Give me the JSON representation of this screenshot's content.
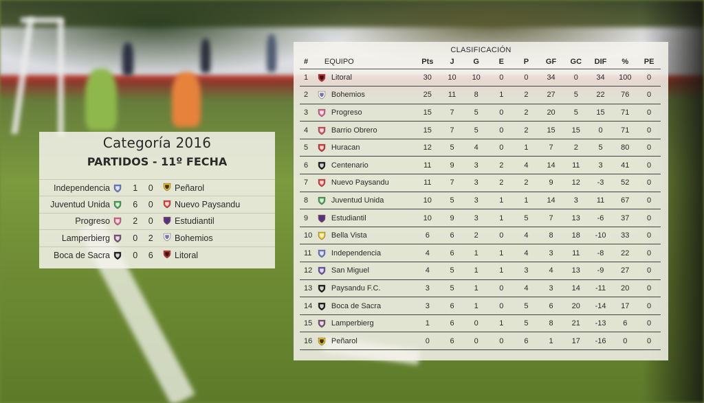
{
  "matches": {
    "title": "Categoría 2016",
    "round": "PARTIDOS - 11º FECHA",
    "games": [
      {
        "home": "Independencia",
        "home_icon": "independencia-crest-icon",
        "score": "1 0",
        "away": "Peñarol",
        "away_icon": "penarol-crest-icon"
      },
      {
        "home": "Juventud Unida",
        "home_icon": "juventud-unida-crest-icon",
        "score": "6 0",
        "away": "Nuevo Paysandu",
        "away_icon": "nuevo-paysandu-crest-icon"
      },
      {
        "home": "Progreso",
        "home_icon": "progreso-crest-icon",
        "score": "2 0",
        "away": "Estudiantil",
        "away_icon": "estudiantil-crest-icon"
      },
      {
        "home": "Lamperbierg",
        "home_icon": "lamperbierg-crest-icon",
        "score": "0 2",
        "away": "Bohemios",
        "away_icon": "bohemios-crest-icon"
      },
      {
        "home": "Boca de Sacra",
        "home_icon": "boca-de-sacra-crest-icon",
        "score": "0 6",
        "away": "Litoral",
        "away_icon": "litoral-crest-icon"
      }
    ]
  },
  "standings": {
    "title": "CLASIFICACIÓN",
    "headers": {
      "pos": "#",
      "team": "EQUIPO",
      "pts": "Pts",
      "j": "J",
      "g": "G",
      "e": "E",
      "p": "P",
      "gf": "GF",
      "gc": "GC",
      "dif": "DIF",
      "pct": "%",
      "pe": "PE"
    },
    "rows": [
      {
        "pos": "1",
        "team": "Litoral",
        "icon": "litoral-crest-icon",
        "pts": "30",
        "j": "10",
        "g": "10",
        "e": "0",
        "p": "0",
        "gf": "34",
        "gc": "0",
        "dif": "34",
        "pct": "100",
        "pe": "0"
      },
      {
        "pos": "2",
        "team": "Bohemios",
        "icon": "bohemios-crest-icon",
        "pts": "25",
        "j": "11",
        "g": "8",
        "e": "1",
        "p": "2",
        "gf": "27",
        "gc": "5",
        "dif": "22",
        "pct": "76",
        "pe": "0"
      },
      {
        "pos": "3",
        "team": "Progreso",
        "icon": "progreso-crest-icon",
        "pts": "15",
        "j": "7",
        "g": "5",
        "e": "0",
        "p": "2",
        "gf": "20",
        "gc": "5",
        "dif": "15",
        "pct": "71",
        "pe": "0"
      },
      {
        "pos": "4",
        "team": "Barrio Obrero",
        "icon": "barrio-obrero-crest-icon",
        "pts": "15",
        "j": "7",
        "g": "5",
        "e": "0",
        "p": "2",
        "gf": "15",
        "gc": "15",
        "dif": "0",
        "pct": "71",
        "pe": "0"
      },
      {
        "pos": "5",
        "team": "Huracan",
        "icon": "huracan-crest-icon",
        "pts": "12",
        "j": "5",
        "g": "4",
        "e": "0",
        "p": "1",
        "gf": "7",
        "gc": "2",
        "dif": "5",
        "pct": "80",
        "pe": "0"
      },
      {
        "pos": "6",
        "team": "Centenario",
        "icon": "centenario-crest-icon",
        "pts": "11",
        "j": "9",
        "g": "3",
        "e": "2",
        "p": "4",
        "gf": "14",
        "gc": "11",
        "dif": "3",
        "pct": "41",
        "pe": "0"
      },
      {
        "pos": "7",
        "team": "Nuevo Paysandu",
        "icon": "nuevo-paysandu-crest-icon",
        "pts": "11",
        "j": "7",
        "g": "3",
        "e": "2",
        "p": "2",
        "gf": "9",
        "gc": "12",
        "dif": "-3",
        "pct": "52",
        "pe": "0"
      },
      {
        "pos": "8",
        "team": "Juventud Unida",
        "icon": "juventud-unida-crest-icon",
        "pts": "10",
        "j": "5",
        "g": "3",
        "e": "1",
        "p": "1",
        "gf": "14",
        "gc": "3",
        "dif": "11",
        "pct": "67",
        "pe": "0"
      },
      {
        "pos": "9",
        "team": "Estudiantil",
        "icon": "estudiantil-crest-icon",
        "pts": "10",
        "j": "9",
        "g": "3",
        "e": "1",
        "p": "5",
        "gf": "7",
        "gc": "13",
        "dif": "-6",
        "pct": "37",
        "pe": "0"
      },
      {
        "pos": "10",
        "team": "Bella Vista",
        "icon": "bella-vista-crest-icon",
        "pts": "6",
        "j": "6",
        "g": "2",
        "e": "0",
        "p": "4",
        "gf": "8",
        "gc": "18",
        "dif": "-10",
        "pct": "33",
        "pe": "0"
      },
      {
        "pos": "11",
        "team": "Independencia",
        "icon": "independencia-crest-icon",
        "pts": "4",
        "j": "6",
        "g": "1",
        "e": "1",
        "p": "4",
        "gf": "3",
        "gc": "11",
        "dif": "-8",
        "pct": "22",
        "pe": "0"
      },
      {
        "pos": "12",
        "team": "San Miguel",
        "icon": "san-miguel-crest-icon",
        "pts": "4",
        "j": "5",
        "g": "1",
        "e": "1",
        "p": "3",
        "gf": "4",
        "gc": "13",
        "dif": "-9",
        "pct": "27",
        "pe": "0"
      },
      {
        "pos": "13",
        "team": "Paysandu F.C.",
        "icon": "paysandu-fc-crest-icon",
        "pts": "3",
        "j": "5",
        "g": "1",
        "e": "0",
        "p": "4",
        "gf": "3",
        "gc": "14",
        "dif": "-11",
        "pct": "20",
        "pe": "0"
      },
      {
        "pos": "14",
        "team": "Boca de Sacra",
        "icon": "boca-de-sacra-crest-icon",
        "pts": "3",
        "j": "6",
        "g": "1",
        "e": "0",
        "p": "5",
        "gf": "6",
        "gc": "20",
        "dif": "-14",
        "pct": "17",
        "pe": "0"
      },
      {
        "pos": "15",
        "team": "Lamperbierg",
        "icon": "lamperbierg-crest-icon",
        "pts": "1",
        "j": "6",
        "g": "0",
        "e": "1",
        "p": "5",
        "gf": "8",
        "gc": "21",
        "dif": "-13",
        "pct": "6",
        "pe": "0"
      },
      {
        "pos": "16",
        "team": "Peñarol",
        "icon": "penarol-crest-icon",
        "pts": "0",
        "j": "6",
        "g": "0",
        "e": "0",
        "p": "6",
        "gf": "1",
        "gc": "17",
        "dif": "-16",
        "pct": "0",
        "pe": "0"
      }
    ]
  },
  "crest_colors": {
    "litoral-crest-icon": [
      "#c62828",
      "#111111"
    ],
    "bohemios-crest-icon": [
      "#ffffff",
      "#5c4fa3"
    ],
    "progreso-crest-icon": [
      "#e35d8a",
      "#ffffff"
    ],
    "barrio-obrero-crest-icon": [
      "#d94455",
      "#ffffff"
    ],
    "huracan-crest-icon": [
      "#d62d2d",
      "#ffffff"
    ],
    "centenario-crest-icon": [
      "#111111",
      "#ffffff"
    ],
    "nuevo-paysandu-crest-icon": [
      "#e53935",
      "#ffffff"
    ],
    "juventud-unida-crest-icon": [
      "#3fa34d",
      "#ffffff"
    ],
    "estudiantil-crest-icon": [
      "#7b2d6d",
      "#2d3f9a"
    ],
    "bella-vista-crest-icon": [
      "#f2c21b",
      "#ffffff"
    ],
    "independencia-crest-icon": [
      "#6a78d6",
      "#ffffff"
    ],
    "san-miguel-crest-icon": [
      "#6a4bb3",
      "#ffffff"
    ],
    "paysandu-fc-crest-icon": [
      "#111111",
      "#ffffff"
    ],
    "boca-de-sacra-crest-icon": [
      "#111111",
      "#ffffff"
    ],
    "lamperbierg-crest-icon": [
      "#7a4a7a",
      "#ffffff"
    ],
    "penarol-crest-icon": [
      "#f2c21b",
      "#111111"
    ]
  }
}
